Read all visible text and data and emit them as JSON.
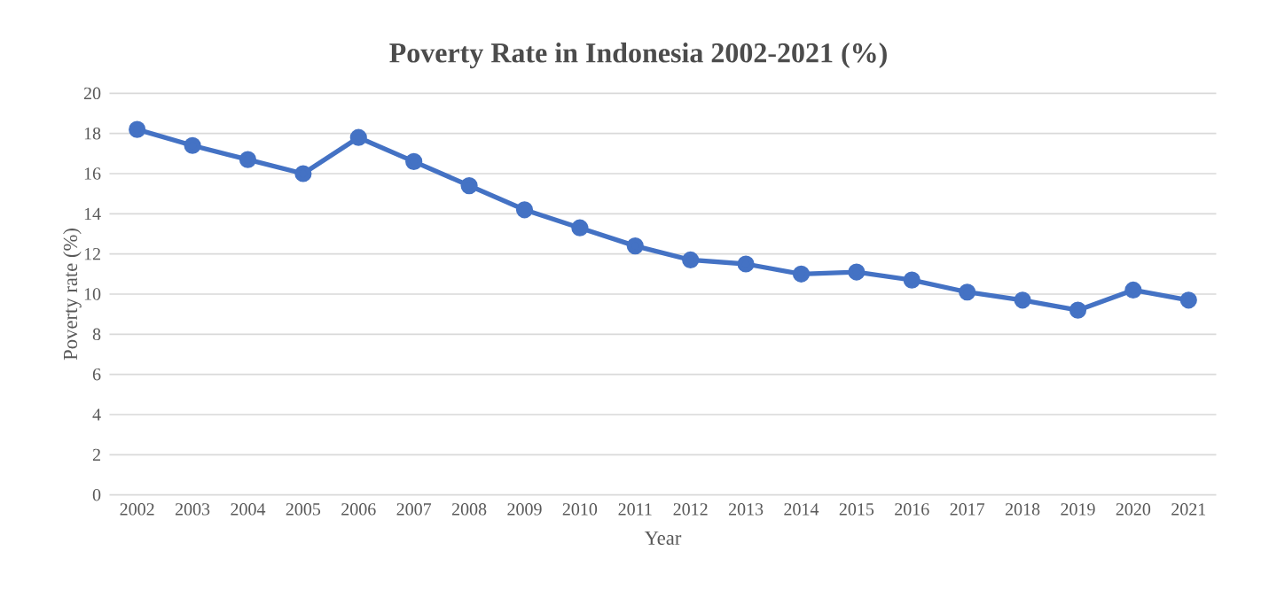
{
  "chart_data": {
    "type": "line",
    "title": "Poverty Rate in Indonesia 2002-2021 (%)",
    "xlabel": "Year",
    "ylabel": "Poverty rate (%)",
    "categories": [
      "2002",
      "2003",
      "2004",
      "2005",
      "2006",
      "2007",
      "2008",
      "2009",
      "2010",
      "2011",
      "2012",
      "2013",
      "2014",
      "2015",
      "2016",
      "2017",
      "2018",
      "2019",
      "2020",
      "2021"
    ],
    "values": [
      18.2,
      17.4,
      16.7,
      16.0,
      17.8,
      16.6,
      15.4,
      14.2,
      13.3,
      12.4,
      11.7,
      11.5,
      11.0,
      11.1,
      10.7,
      10.1,
      9.7,
      9.2,
      10.2,
      9.7
    ],
    "color": "#4472c4",
    "ylim": [
      0,
      20
    ],
    "yticks": [
      0,
      2,
      4,
      6,
      8,
      10,
      12,
      14,
      16,
      18,
      20
    ],
    "grid": "y",
    "marker": "circle",
    "line_style": "solid"
  }
}
